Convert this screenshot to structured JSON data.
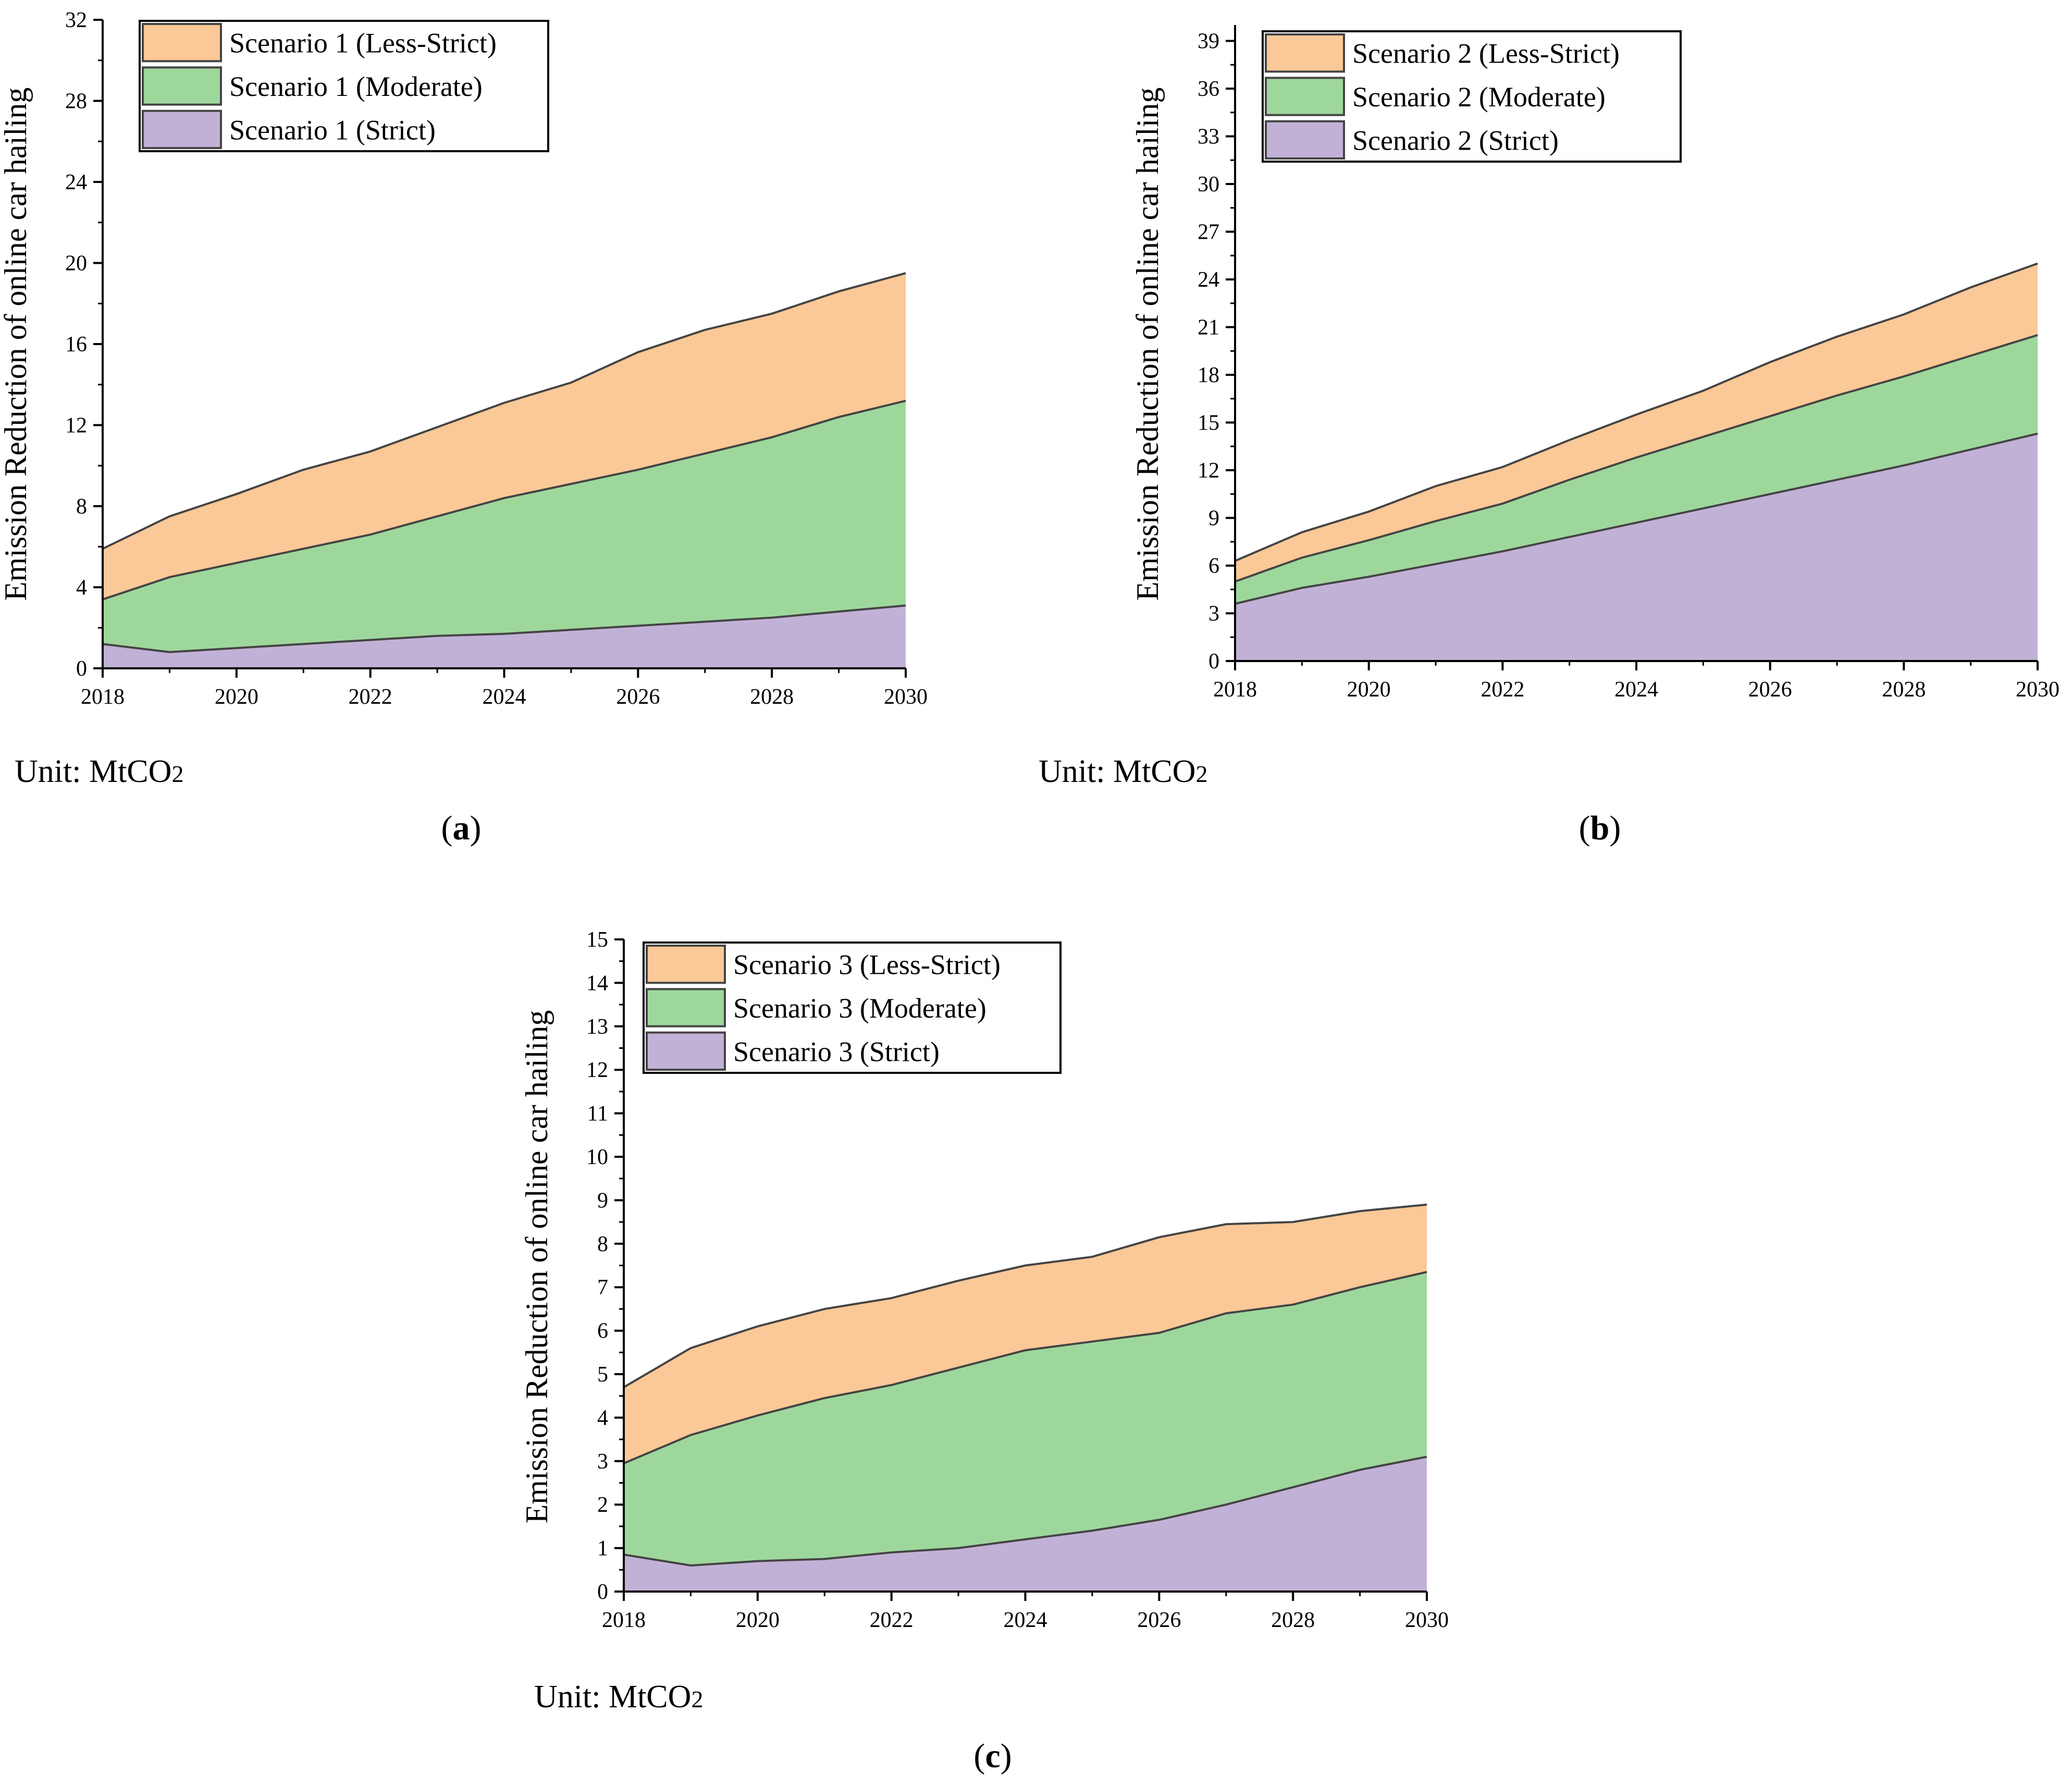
{
  "colors": {
    "less_strict": "#fbc897",
    "moderate": "#9ed79c",
    "strict": "#c2b1d6",
    "edge": "#444444",
    "axis": "#000000"
  },
  "chart_data": [
    {
      "id": "a",
      "type": "area",
      "panel_label": "a",
      "unit_label": "Unit: MtCO₂",
      "ylabel": "Emission Reduction of  online car hailing",
      "xlabel": "",
      "xlim": [
        2018,
        2030
      ],
      "ylim": [
        0,
        32
      ],
      "x_ticks": [
        2018,
        2020,
        2022,
        2024,
        2026,
        2028,
        2030
      ],
      "y_ticks": [
        0,
        4,
        8,
        12,
        16,
        20,
        24,
        28,
        32
      ],
      "y_minor_step": 2,
      "legend_position": "top-left",
      "x": [
        2018,
        2019,
        2020,
        2021,
        2022,
        2023,
        2024,
        2025,
        2026,
        2027,
        2028,
        2029,
        2030
      ],
      "series": [
        {
          "key": "strict",
          "name": "Scenario 1 (Strict)",
          "values": [
            1.2,
            0.8,
            1.0,
            1.2,
            1.4,
            1.6,
            1.7,
            1.9,
            2.1,
            2.3,
            2.5,
            2.8,
            3.1
          ]
        },
        {
          "key": "moderate",
          "name": "Scenario 1 (Moderate)",
          "values": [
            3.4,
            4.5,
            5.2,
            5.9,
            6.6,
            7.5,
            8.4,
            9.1,
            9.8,
            10.6,
            11.4,
            12.4,
            13.2
          ]
        },
        {
          "key": "less_strict",
          "name": "Scenario 1 (Less-Strict)",
          "values": [
            5.9,
            7.5,
            8.6,
            9.8,
            10.7,
            11.9,
            13.1,
            14.1,
            15.6,
            16.7,
            17.5,
            18.6,
            19.5
          ]
        }
      ]
    },
    {
      "id": "b",
      "type": "area",
      "panel_label": "b",
      "unit_label": "Unit: MtCO₂",
      "ylabel": "Emission Reduction of  online car hailing",
      "xlabel": "",
      "xlim": [
        2018,
        2030
      ],
      "ylim": [
        0,
        40
      ],
      "x_ticks": [
        2018,
        2020,
        2022,
        2024,
        2026,
        2028,
        2030
      ],
      "y_ticks": [
        0,
        3,
        6,
        9,
        12,
        15,
        18,
        21,
        24,
        27,
        30,
        33,
        36,
        39
      ],
      "y_minor_step": 1.5,
      "legend_position": "top-left",
      "x": [
        2018,
        2019,
        2020,
        2021,
        2022,
        2023,
        2024,
        2025,
        2026,
        2027,
        2028,
        2029,
        2030
      ],
      "series": [
        {
          "key": "strict",
          "name": "Scenario 2 (Strict)",
          "values": [
            3.6,
            4.6,
            5.3,
            6.1,
            6.9,
            7.8,
            8.7,
            9.6,
            10.5,
            11.4,
            12.3,
            13.3,
            14.3
          ]
        },
        {
          "key": "moderate",
          "name": "Scenario 2 (Moderate)",
          "values": [
            5.0,
            6.5,
            7.6,
            8.8,
            9.9,
            11.4,
            12.8,
            14.1,
            15.4,
            16.7,
            17.9,
            19.2,
            20.5
          ]
        },
        {
          "key": "less_strict",
          "name": "Scenario 2 (Less-Strict)",
          "values": [
            6.3,
            8.1,
            9.4,
            11.0,
            12.2,
            13.9,
            15.5,
            17.0,
            18.8,
            20.4,
            21.8,
            23.5,
            25.0
          ]
        }
      ]
    },
    {
      "id": "c",
      "type": "area",
      "panel_label": "c",
      "unit_label": "Unit: MtCO₂",
      "ylabel": "Emission Reduction of  online car hailing",
      "xlabel": "",
      "xlim": [
        2018,
        2030
      ],
      "ylim": [
        0,
        15
      ],
      "x_ticks": [
        2018,
        2020,
        2022,
        2024,
        2026,
        2028,
        2030
      ],
      "y_ticks": [
        0,
        1,
        2,
        3,
        4,
        5,
        6,
        7,
        8,
        9,
        10,
        11,
        12,
        13,
        14,
        15
      ],
      "y_minor_step": 0.5,
      "legend_position": "top-left",
      "x": [
        2018,
        2019,
        2020,
        2021,
        2022,
        2023,
        2024,
        2025,
        2026,
        2027,
        2028,
        2029,
        2030
      ],
      "series": [
        {
          "key": "strict",
          "name": "Scenario 3 (Strict)",
          "values": [
            0.85,
            0.6,
            0.7,
            0.75,
            0.9,
            1.0,
            1.2,
            1.4,
            1.65,
            2.0,
            2.4,
            2.8,
            3.1
          ]
        },
        {
          "key": "moderate",
          "name": "Scenario 3 (Moderate)",
          "values": [
            2.95,
            3.6,
            4.05,
            4.45,
            4.75,
            5.15,
            5.55,
            5.75,
            5.95,
            6.4,
            6.6,
            7.0,
            7.35
          ]
        },
        {
          "key": "less_strict",
          "name": "Scenario 3 (Less-Strict)",
          "values": [
            4.7,
            5.6,
            6.1,
            6.5,
            6.75,
            7.15,
            7.5,
            7.7,
            8.15,
            8.45,
            8.5,
            8.75,
            8.9
          ]
        }
      ]
    }
  ]
}
